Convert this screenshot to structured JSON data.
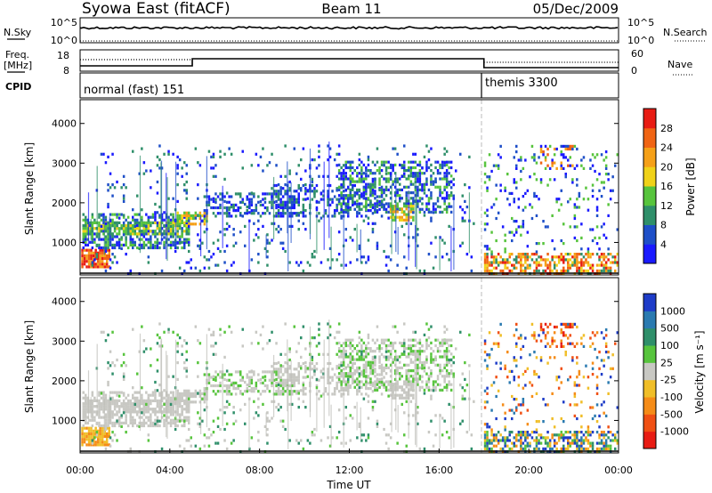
{
  "header": {
    "station": "Syowa East (fitACF)",
    "beam": "Beam 11",
    "date": "05/Dec/2009"
  },
  "panel_nsky": {
    "left_label": "N.Sky",
    "right_label": "N.Search",
    "ticks": [
      "10^5",
      "10^0"
    ],
    "right_ticks": [
      "10^5",
      "10^0"
    ]
  },
  "panel_freq": {
    "left_label_1": "Freq.",
    "left_label_2": "[MHz]",
    "left_ticks": [
      "18",
      "8"
    ],
    "right_label": "Nave",
    "right_ticks": [
      "60",
      "0"
    ]
  },
  "panel_cpid": {
    "label": "CPID",
    "modes": [
      "normal (fast) 151",
      "themis 3300"
    ]
  },
  "chart_data": [
    {
      "type": "heatmap",
      "name": "power",
      "ylabel": "Slant Range [km]",
      "xlabel": "Time UT",
      "x_ticks": [
        "00:00",
        "04:00",
        "08:00",
        "12:00",
        "16:00",
        "20:00",
        "00:00"
      ],
      "y_ticks": [
        1000,
        2000,
        3000,
        4000
      ],
      "xlim_hours": [
        0,
        24
      ],
      "ylim": [
        180,
        4600
      ],
      "colorbar_label": "Power [dB]",
      "colorbar_ticks": [
        4,
        8,
        12,
        16,
        20,
        24,
        28
      ],
      "colorbar_range": [
        0,
        30
      ],
      "colors": [
        "#1a1aff",
        "#1e4fc8",
        "#2f8f6a",
        "#57c43d",
        "#f0d219",
        "#f5a018",
        "#f06414",
        "#e81c14"
      ],
      "mode_change_hour": 18.0
    },
    {
      "type": "heatmap",
      "name": "velocity",
      "ylabel": "Slant Range [km]",
      "xlabel": "Time UT",
      "x_ticks": [
        "00:00",
        "04:00",
        "08:00",
        "12:00",
        "16:00",
        "20:00",
        "00:00"
      ],
      "y_ticks": [
        1000,
        2000,
        3000,
        4000
      ],
      "colorbar_label": "Velocity [m s⁻¹]",
      "colorbar_ticks": [
        "1000",
        "500",
        "100",
        "25",
        "-25",
        "-100",
        "-500",
        "-1000"
      ],
      "colors": [
        "#1e3cc8",
        "#2a7ab0",
        "#2f8f6a",
        "#57c43d",
        "#c8c8c3",
        "#f0be28",
        "#f58c18",
        "#f05014",
        "#e81c14"
      ],
      "ground_scatter_color": "#bdbdb8"
    }
  ],
  "xlabel": "Time UT"
}
